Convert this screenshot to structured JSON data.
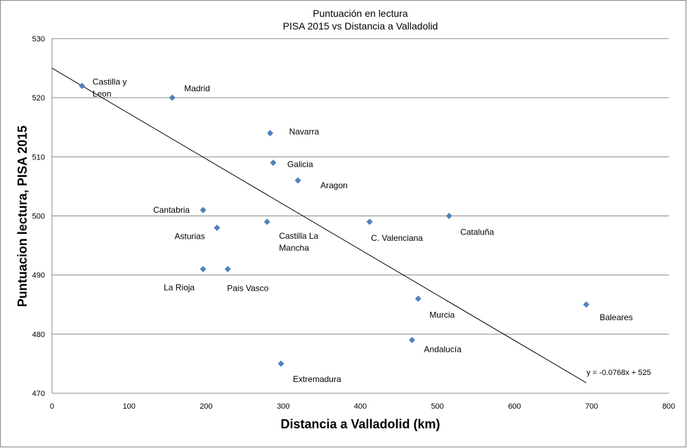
{
  "chart_data": {
    "type": "scatter",
    "title": [
      "Puntuación  en lectura",
      "PISA 2015 vs Distancia a Valladolid"
    ],
    "xlabel": "Distancia a Valladolid (km)",
    "ylabel": "Puntuacion lectura, PISA 2015",
    "xlim": [
      0,
      800
    ],
    "ylim": [
      470,
      530
    ],
    "xticks": [
      0,
      100,
      200,
      300,
      400,
      500,
      600,
      700,
      800
    ],
    "yticks": [
      470,
      480,
      490,
      500,
      510,
      520,
      530
    ],
    "grid": "horizontal",
    "marker_color": "#4F81BD",
    "points": [
      {
        "label": "Castilla y Leon",
        "x": 39,
        "y": 522
      },
      {
        "label": "Madrid",
        "x": 156,
        "y": 520
      },
      {
        "label": "Navarra",
        "x": 283,
        "y": 514
      },
      {
        "label": "Galicia",
        "x": 287,
        "y": 509
      },
      {
        "label": "Aragon",
        "x": 319,
        "y": 506
      },
      {
        "label": "Cantabria",
        "x": 196,
        "y": 501
      },
      {
        "label": "Asturias",
        "x": 214,
        "y": 498
      },
      {
        "label": "Castilla La Mancha",
        "x": 279,
        "y": 499
      },
      {
        "label": "C. Valenciana",
        "x": 412,
        "y": 499
      },
      {
        "label": "Cataluña",
        "x": 515,
        "y": 500
      },
      {
        "label": "La Rioja",
        "x": 196,
        "y": 491
      },
      {
        "label": "Pais Vasco",
        "x": 228,
        "y": 491
      },
      {
        "label": "Murcia",
        "x": 475,
        "y": 486
      },
      {
        "label": "Baleares",
        "x": 693,
        "y": 485
      },
      {
        "label": "Andalucía",
        "x": 467,
        "y": 479
      },
      {
        "label": "Extremadura",
        "x": 297,
        "y": 475
      }
    ],
    "trendline": {
      "type": "linear",
      "slope": -0.0768,
      "intercept": 525,
      "x_range": [
        0,
        693
      ],
      "equation": "y = -0.0768x + 525"
    }
  }
}
